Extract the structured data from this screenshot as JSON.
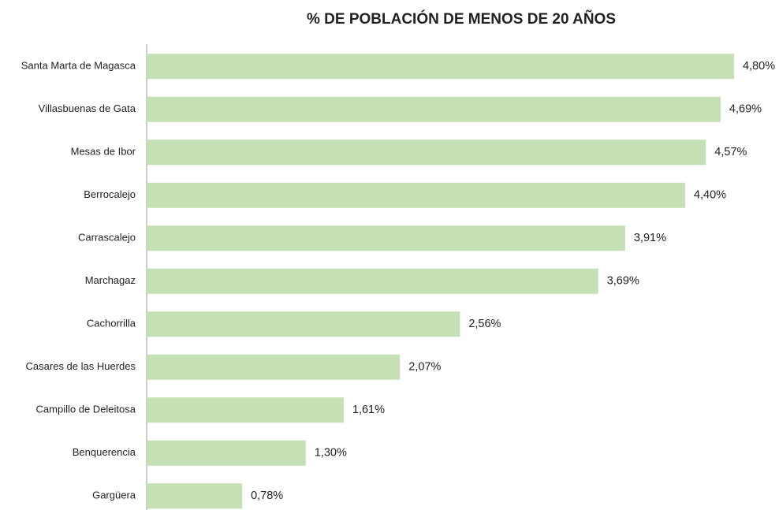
{
  "chart_data": {
    "type": "bar",
    "orientation": "horizontal",
    "title": "% DE POBLACIÓN DE MENOS DE 20 AÑOS",
    "categories": [
      "Santa Marta de Magasca",
      "Villasbuenas de Gata",
      "Mesas de Ibor",
      "Berrocalejo",
      "Carrascalejo",
      "Marchagaz",
      "Cachorrilla",
      "Casares de las Huerdes",
      "Campillo de Deleitosa",
      "Benquerencia",
      "Gargüera"
    ],
    "values": [
      4.8,
      4.69,
      4.57,
      4.4,
      3.91,
      3.69,
      2.56,
      2.07,
      1.61,
      1.3,
      0.78
    ],
    "value_labels": [
      "4,80%",
      "4,69%",
      "4,57%",
      "4,40%",
      "3,91%",
      "3,69%",
      "2,56%",
      "2,07%",
      "1,61%",
      "1,30%",
      "0,78%"
    ],
    "color": "#c5e0b4"
  }
}
